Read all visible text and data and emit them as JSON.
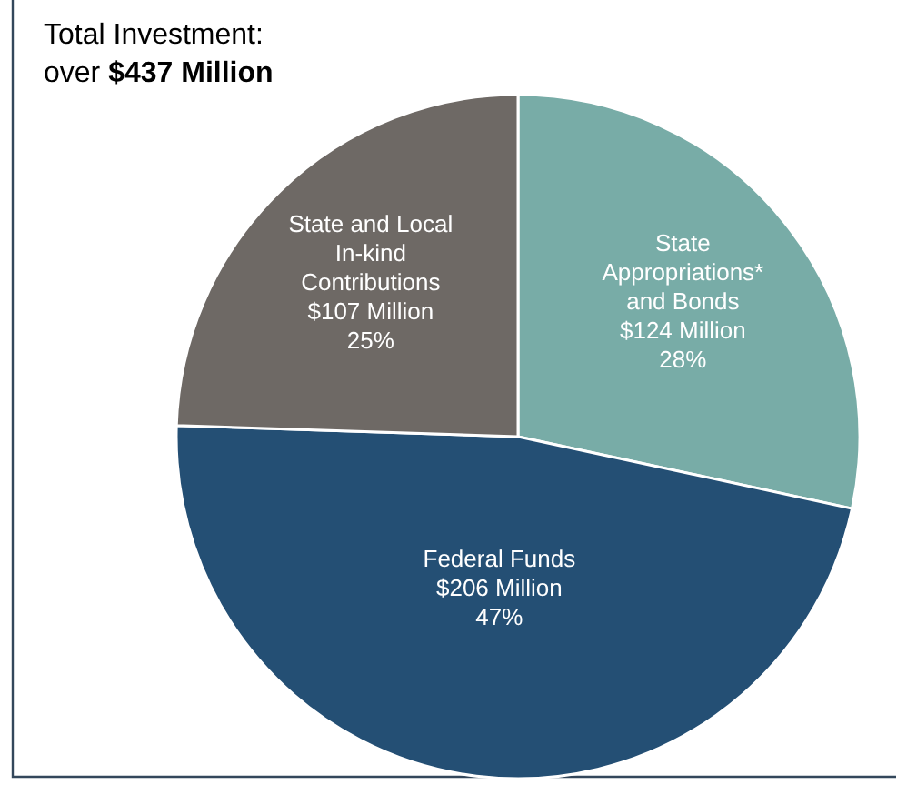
{
  "chart_data": {
    "type": "pie",
    "title": "Total Investment:",
    "subtitle": "over $437 Million",
    "categories": [
      "State\nAppropriations*\nand Bonds",
      "Federal Funds",
      "State and Local\nIn-kind\nContributions"
    ],
    "values": [
      124,
      206,
      107
    ],
    "value_labels": [
      "$124 Million\n28%",
      "$206 Million\n47%",
      "$107 Million\n25%"
    ],
    "colors": [
      "#78aca7",
      "#244f74",
      "#6e6965"
    ]
  }
}
